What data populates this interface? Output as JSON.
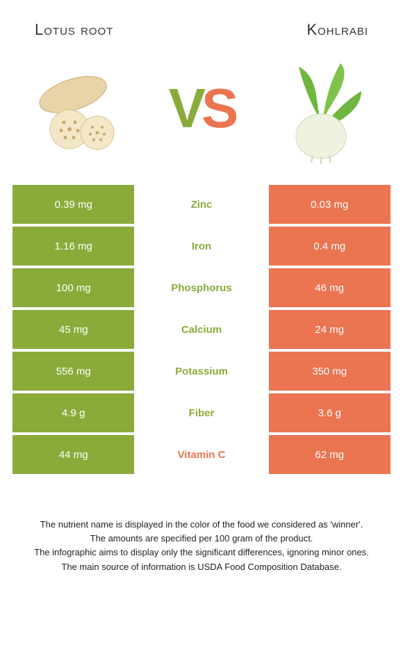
{
  "colors": {
    "green": "#8aab3a",
    "orange": "#eb7451",
    "mid_bg": "#ffffff"
  },
  "left_title": "Lotus root",
  "right_title": "Kohlrabi",
  "vs_v": "V",
  "vs_s": "S",
  "rows": [
    {
      "left": "0.39 mg",
      "name": "Zinc",
      "right": "0.03 mg",
      "winner": "left"
    },
    {
      "left": "1.16 mg",
      "name": "Iron",
      "right": "0.4 mg",
      "winner": "left"
    },
    {
      "left": "100 mg",
      "name": "Phosphorus",
      "right": "46 mg",
      "winner": "left"
    },
    {
      "left": "45 mg",
      "name": "Calcium",
      "right": "24 mg",
      "winner": "left"
    },
    {
      "left": "556 mg",
      "name": "Potassium",
      "right": "350 mg",
      "winner": "left"
    },
    {
      "left": "4.9 g",
      "name": "Fiber",
      "right": "3.6 g",
      "winner": "left"
    },
    {
      "left": "44 mg",
      "name": "Vitamin C",
      "right": "62 mg",
      "winner": "right"
    }
  ],
  "footer": [
    "The nutrient name is displayed in the color of the food we considered as 'winner'.",
    "The amounts are specified per 100 gram of the product.",
    "The infographic aims to display only the significant differences, ignoring minor ones.",
    "The main source of information is USDA Food Composition Database."
  ]
}
